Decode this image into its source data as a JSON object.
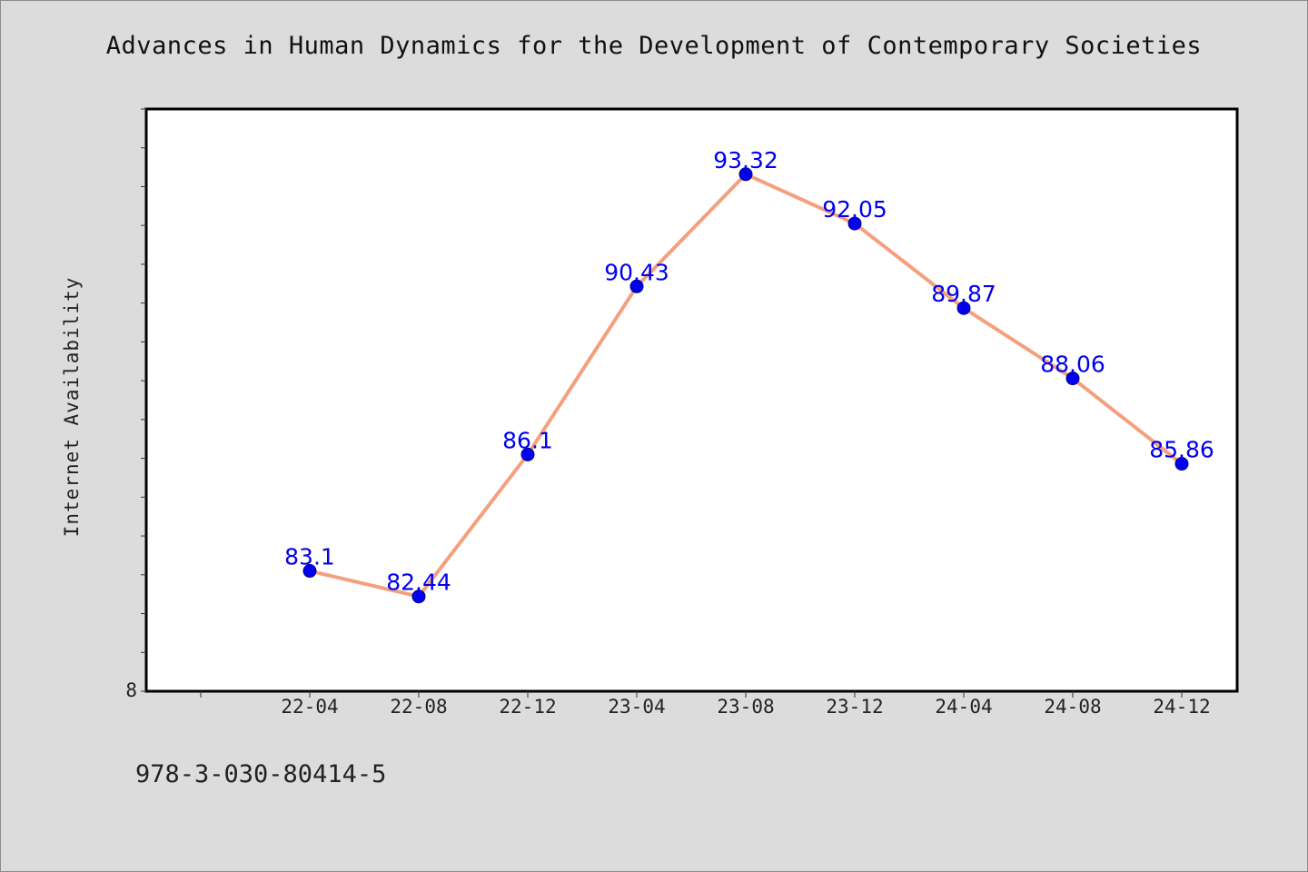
{
  "title": "Advances in Human Dynamics for the Development of Contemporary Societies",
  "footer_text": "978-3-030-80414-5",
  "colors": {
    "background": "#dcdcdc",
    "plot_background": "#ffffff",
    "line": "#f4a07e",
    "marker": "#0000ee",
    "data_label": "#0000ee"
  },
  "chart_data": {
    "type": "line",
    "ylabel": "Internet Availability",
    "categories": [
      "22-04",
      "22-08",
      "22-12",
      "23-04",
      "23-08",
      "23-12",
      "24-04",
      "24-08",
      "24-12"
    ],
    "values": [
      83.1,
      82.44,
      86.1,
      90.43,
      93.32,
      92.05,
      89.87,
      88.06,
      85.86
    ],
    "data_labels": [
      "83.1",
      "82.44",
      "86.1",
      "90.43",
      "93.32",
      "92.05",
      "89.87",
      "88.06",
      "85.86"
    ],
    "y_tick_labels": [
      "8"
    ],
    "ylim": [
      80,
      95
    ],
    "grid": false,
    "legend": false
  }
}
